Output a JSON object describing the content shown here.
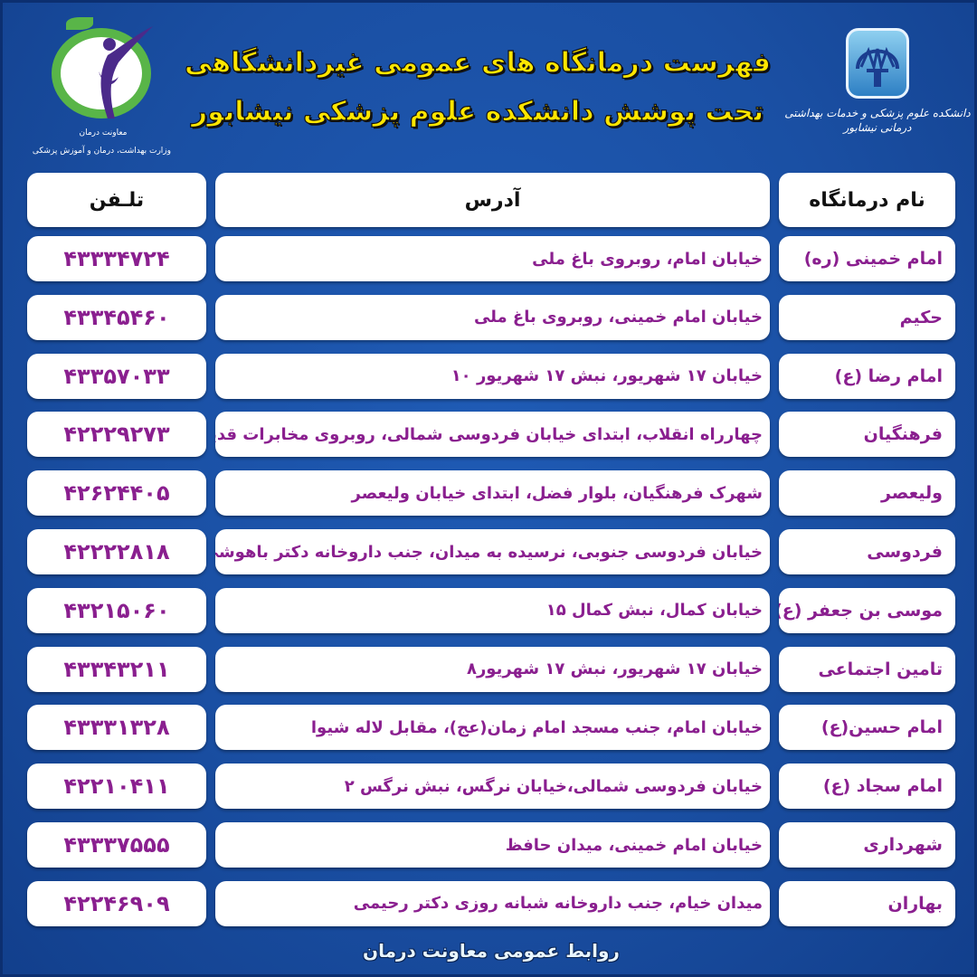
{
  "title": {
    "line1": "فهرست درمانگاه های عمومی غیردانشگاهی",
    "line2": "تحت پوشش دانشکده علوم پزشکی نیشابور"
  },
  "logos": {
    "right_caption": "دانشکده علوم پزشکی و خدمات بهداشتی درمانی نیشابور",
    "left_caption1": "معاونت درمان",
    "left_caption2": "وزارت بهداشت، درمان و آموزش پزشکی"
  },
  "colors": {
    "background": "#1a4fa3",
    "title": "#ffe600",
    "cell_text": "#8a1f8f",
    "cell_bg": "#ffffff"
  },
  "table": {
    "headers": {
      "name": "نام درمانگاه",
      "address": "آدرس",
      "phone": "تلـفن"
    },
    "rows": [
      {
        "name": "امام خمینی (ره)",
        "address": "خیابان امام، روبروی باغ ملی",
        "phone": "۴۳۳۳۴۷۲۴"
      },
      {
        "name": "حکیم",
        "address": "خیابان امام خمینی، روبروی باغ ملی",
        "phone": "۴۳۳۴۵۴۶۰"
      },
      {
        "name": "امام رضا (ع)",
        "address": "خیابان ۱۷ شهریور، نبش ۱۷ شهریور ۱۰",
        "phone": "۴۳۳۵۷۰۳۳"
      },
      {
        "name": "فرهنگیان",
        "address": "چهارراه انقلاب، ابتدای خیابان فردوسی شمالی، روبروی مخابرات قدیم",
        "phone": "۴۲۲۲۹۲۷۳"
      },
      {
        "name": "ولیعصر",
        "address": "شهرک فرهنگیان، بلوار فضل، ابتدای خیابان ولیعصر",
        "phone": "۴۲۶۲۴۴۰۵"
      },
      {
        "name": "فردوسی",
        "address": "خیابان فردوسی جنوبی، نرسیده به میدان، جنب داروخانه دکتر باهوشی",
        "phone": "۴۲۲۲۲۸۱۸"
      },
      {
        "name": "موسی بن جعفر (ع)",
        "address": "خیابان کمال، نبش کمال ۱۵",
        "phone": "۴۳۲۱۵۰۶۰"
      },
      {
        "name": "تامین اجتماعی",
        "address": "خیابان ۱۷ شهریور، نبش ۱۷ شهریور۸",
        "phone": "۴۳۳۴۳۲۱۱"
      },
      {
        "name": "امام حسین(ع)",
        "address": "خیابان امام، جنب مسجد امام زمان(عج)، مقابل لاله شیوا",
        "phone": "۴۳۳۳۱۳۲۸"
      },
      {
        "name": "امام سجاد (ع)",
        "address": "خیابان فردوسی شمالی،خیابان نرگس، نبش نرگس ۲",
        "phone": "۴۲۲۱۰۴۱۱"
      },
      {
        "name": "شهرداری",
        "address": "خیابان امام خمینی، میدان حافظ",
        "phone": "۴۳۳۳۷۵۵۵"
      },
      {
        "name": "بهاران",
        "address": "میدان خیام، جنب داروخانه شبانه روزی دکتر رحیمی",
        "phone": "۴۲۲۴۶۹۰۹"
      }
    ]
  },
  "footer": "روابط عمومی معاونت درمان"
}
